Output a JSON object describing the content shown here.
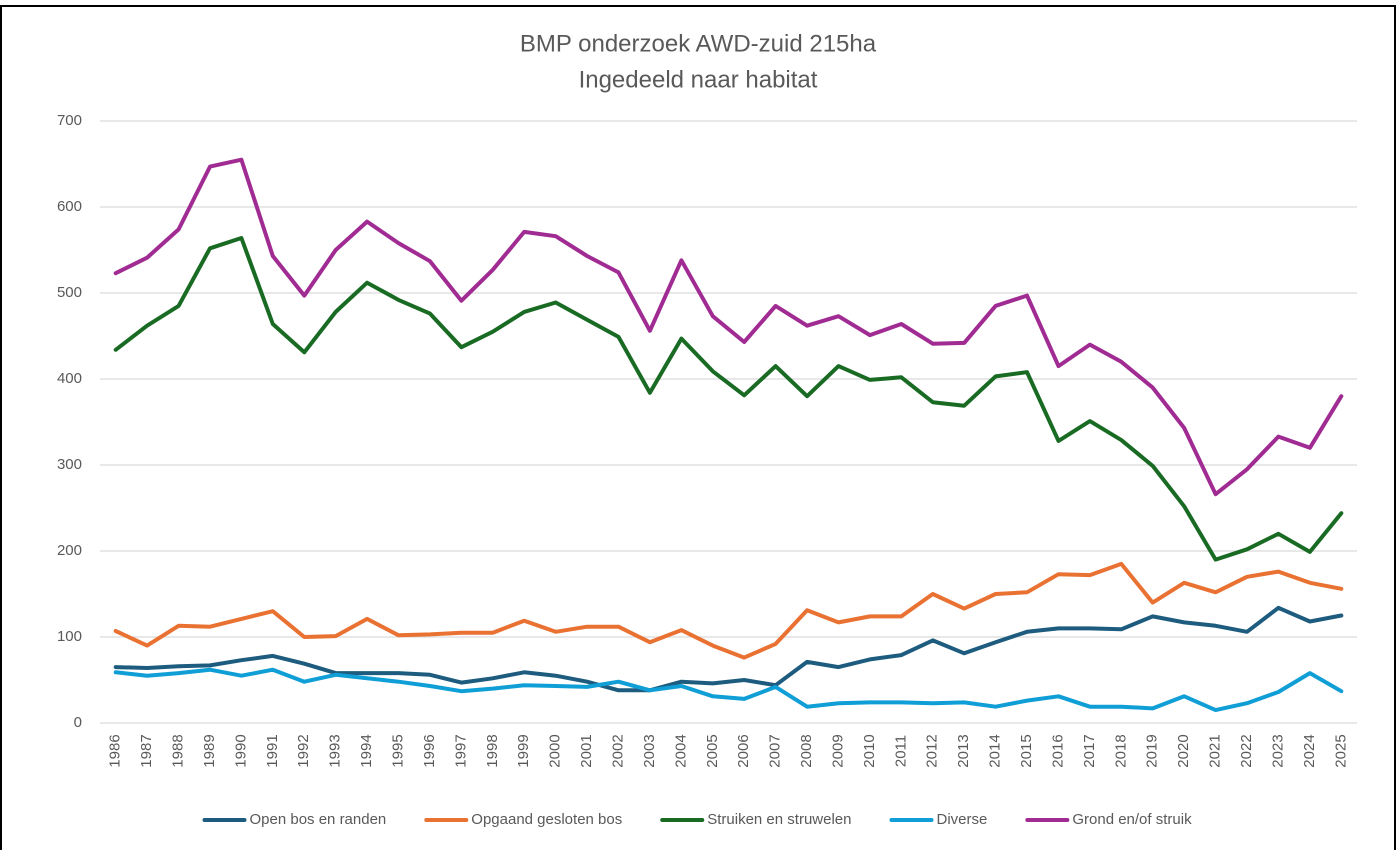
{
  "chart_data": {
    "type": "line",
    "title": "BMP onderzoek AWD-zuid 215ha",
    "subtitle": "Ingedeeld naar habitat",
    "categories": [
      "1986",
      "1987",
      "1988",
      "1989",
      "1990",
      "1991",
      "1992",
      "1993",
      "1994",
      "1995",
      "1996",
      "1997",
      "1998",
      "1999",
      "2000",
      "2001",
      "2002",
      "2003",
      "2004",
      "2005",
      "2006",
      "2007",
      "2008",
      "2009",
      "2010",
      "2011",
      "2012",
      "2013",
      "2014",
      "2015",
      "2016",
      "2017",
      "2018",
      "2019",
      "2020",
      "2021",
      "2022",
      "2023",
      "2024",
      "2025"
    ],
    "series": [
      {
        "name": "Open bos en randen",
        "color": "#1d5c7e",
        "values": [
          65,
          64,
          66,
          67,
          73,
          78,
          69,
          58,
          58,
          58,
          56,
          47,
          52,
          59,
          55,
          48,
          38,
          38,
          48,
          46,
          50,
          44,
          71,
          65,
          74,
          79,
          96,
          81,
          94,
          106,
          110,
          110,
          109,
          124,
          117,
          113,
          106,
          134,
          118,
          125
        ]
      },
      {
        "name": "Opgaand gesloten bos",
        "color": "#e97132",
        "values": [
          107,
          90,
          113,
          112,
          121,
          130,
          100,
          101,
          121,
          102,
          103,
          105,
          105,
          119,
          106,
          112,
          112,
          94,
          108,
          90,
          76,
          92,
          131,
          117,
          124,
          124,
          150,
          133,
          150,
          152,
          173,
          172,
          185,
          140,
          163,
          152,
          170,
          176,
          163,
          156
        ]
      },
      {
        "name": "Struiken en struwelen",
        "color": "#196b24",
        "values": [
          434,
          462,
          485,
          552,
          564,
          464,
          431,
          478,
          512,
          492,
          476,
          437,
          455,
          478,
          489,
          469,
          449,
          384,
          447,
          409,
          381,
          415,
          380,
          415,
          399,
          402,
          373,
          369,
          403,
          408,
          328,
          351,
          329,
          299,
          252,
          190,
          202,
          220,
          199,
          244
        ]
      },
      {
        "name": "Diverse",
        "color": "#0f9ed5",
        "values": [
          59,
          55,
          58,
          62,
          55,
          62,
          48,
          56,
          52,
          48,
          43,
          37,
          40,
          44,
          43,
          42,
          48,
          38,
          43,
          31,
          28,
          42,
          19,
          23,
          24,
          24,
          23,
          24,
          19,
          26,
          31,
          19,
          19,
          17,
          31,
          15,
          23,
          36,
          58,
          37
        ]
      },
      {
        "name": "Grond en/of struik",
        "color": "#a02b93",
        "values": [
          523,
          541,
          574,
          647,
          655,
          543,
          497,
          550,
          583,
          558,
          537,
          491,
          527,
          571,
          566,
          543,
          524,
          456,
          538,
          473,
          443,
          485,
          462,
          473,
          451,
          464,
          441,
          442,
          485,
          497,
          415,
          440,
          420,
          390,
          343,
          266,
          295,
          333,
          320,
          380
        ]
      }
    ],
    "ylim": [
      0,
      700
    ],
    "yticks": [
      0,
      100,
      200,
      300,
      400,
      500,
      600,
      700
    ],
    "grid": true,
    "legend": "bottom"
  }
}
